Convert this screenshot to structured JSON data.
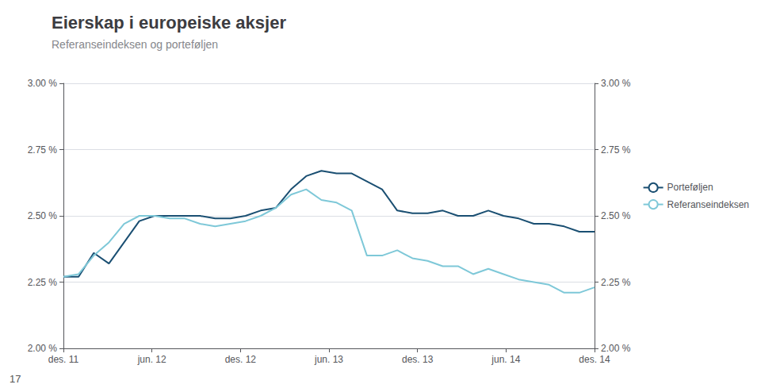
{
  "chart_data": {
    "type": "line",
    "title": "Eierskap i europeiske aksjer",
    "subtitle": "Referanseindeksen og porteføljen",
    "annotations": [
      "17"
    ],
    "x": [
      0,
      0.171429,
      0.342857,
      0.514286,
      0.685714,
      0.857143,
      1.028571,
      1.2,
      1.371429,
      1.542857,
      1.714286,
      1.885714,
      2.057143,
      2.228571,
      2.4,
      2.571429,
      2.742857,
      2.914286,
      3.085714,
      3.257143,
      3.428571,
      3.6,
      3.771429,
      3.942857,
      4.114286,
      4.285714,
      4.457143,
      4.628571,
      4.8,
      4.971429,
      5.142857,
      5.314286,
      5.485714,
      5.657143,
      5.828571,
      6
    ],
    "xlim": [
      0,
      6
    ],
    "xticks": [
      {
        "value": 0,
        "label": "des. 11"
      },
      {
        "value": 1,
        "label": "jun. 12"
      },
      {
        "value": 2,
        "label": "des. 12"
      },
      {
        "value": 3,
        "label": "jun. 13"
      },
      {
        "value": 4,
        "label": "des. 13"
      },
      {
        "value": 5,
        "label": "jun. 14"
      },
      {
        "value": 6,
        "label": "des. 14"
      }
    ],
    "ylim": [
      2.0,
      3.0
    ],
    "yticks": [
      {
        "value": 2.0,
        "label": "2.00 %"
      },
      {
        "value": 2.25,
        "label": "2.25 %"
      },
      {
        "value": 2.5,
        "label": "2.50 %"
      },
      {
        "value": 2.75,
        "label": "2.75 %"
      },
      {
        "value": 3.0,
        "label": "3.00 %"
      }
    ],
    "y2lim": [
      2.0,
      3.0
    ],
    "y2ticks": [
      {
        "value": 2.0,
        "label": "2.00 %"
      },
      {
        "value": 2.25,
        "label": "2.25 %"
      },
      {
        "value": 2.5,
        "label": "2.50 %"
      },
      {
        "value": 2.75,
        "label": "2.75 %"
      },
      {
        "value": 3.0,
        "label": "3.00 %"
      }
    ],
    "grid": true,
    "legend": "right",
    "series": [
      {
        "name": "Porteføljen",
        "color": "#1a4f72",
        "values": [
          2.27,
          2.27,
          2.36,
          2.32,
          2.4,
          2.48,
          2.5,
          2.5,
          2.5,
          2.5,
          2.49,
          2.49,
          2.5,
          2.52,
          2.53,
          2.6,
          2.65,
          2.67,
          2.66,
          2.66,
          2.63,
          2.6,
          2.52,
          2.51,
          2.51,
          2.52,
          2.5,
          2.5,
          2.52,
          2.5,
          2.49,
          2.47,
          2.47,
          2.46,
          2.44,
          2.44
        ]
      },
      {
        "name": "Referanseindeksen",
        "color": "#7ec8d8",
        "values": [
          2.27,
          2.28,
          2.35,
          2.4,
          2.47,
          2.5,
          2.5,
          2.49,
          2.49,
          2.47,
          2.46,
          2.47,
          2.48,
          2.5,
          2.53,
          2.58,
          2.6,
          2.56,
          2.55,
          2.52,
          2.35,
          2.35,
          2.37,
          2.34,
          2.33,
          2.31,
          2.31,
          2.28,
          2.3,
          2.28,
          2.26,
          2.25,
          2.24,
          2.21,
          2.21,
          2.23
        ]
      }
    ]
  }
}
